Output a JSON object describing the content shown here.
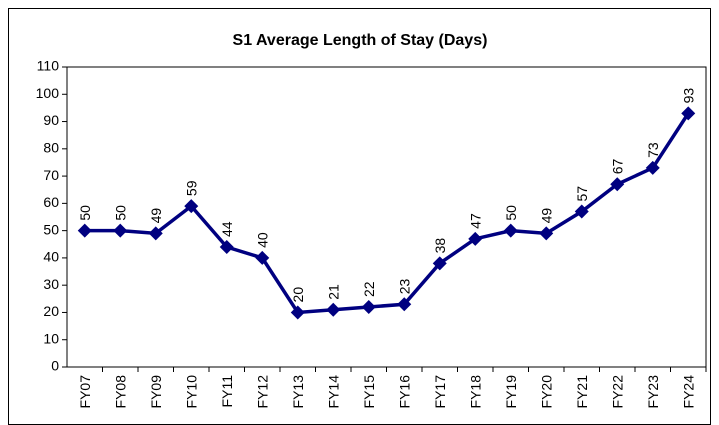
{
  "chart_data": {
    "type": "line",
    "title": "S1 Average Length of Stay (Days)",
    "categories": [
      "FY07",
      "FY08",
      "FY09",
      "FY10",
      "FY11",
      "FY12",
      "FY13",
      "FY14",
      "FY15",
      "FY16",
      "FY17",
      "FY18",
      "FY19",
      "FY20",
      "FY21",
      "FY22",
      "FY23",
      "FY24"
    ],
    "series": [
      {
        "name": "S1 Average Length of Stay (Days)",
        "color": "#000080",
        "values": [
          50,
          50,
          49,
          59,
          44,
          40,
          20,
          21,
          22,
          23,
          38,
          47,
          50,
          49,
          57,
          67,
          73,
          93
        ]
      }
    ],
    "ylim": [
      0,
      110
    ],
    "yticks": [
      0,
      10,
      20,
      30,
      40,
      50,
      60,
      70,
      80,
      90,
      100,
      110
    ],
    "grid": false
  }
}
